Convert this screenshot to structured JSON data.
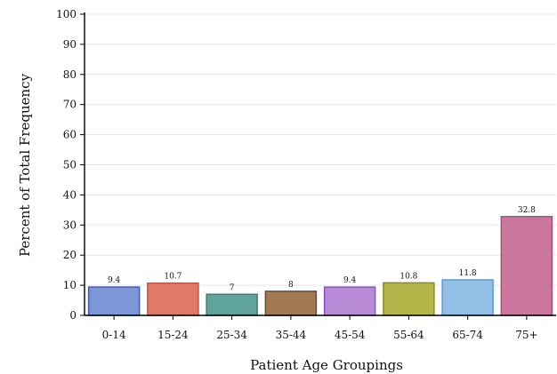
{
  "chart_data": {
    "type": "bar",
    "title": "",
    "xlabel": "Patient Age Groupings",
    "ylabel": "Percent of Total Frequency",
    "categories": [
      "0-14",
      "15-24",
      "25-34",
      "35-44",
      "45-54",
      "55-64",
      "65-74",
      "75+"
    ],
    "values": [
      9.4,
      10.7,
      7,
      8,
      9.4,
      10.8,
      11.8,
      32.8
    ],
    "data_labels": [
      "9.4",
      "10.7",
      "7",
      "8",
      "9.4",
      "10.8",
      "11.8",
      "32.8"
    ],
    "bar_colors": [
      "#7b97d6",
      "#e07b6a",
      "#5fa39a",
      "#a27a52",
      "#b98bd6",
      "#b3b749",
      "#92bfe6",
      "#cc789e"
    ],
    "bar_border_colors": [
      "#3f56c8",
      "#c8523f",
      "#3c7e76",
      "#6b4c2c",
      "#8f4fc4",
      "#8a8d25",
      "#5a9bd8",
      "#a94f78"
    ],
    "ylim": [
      0,
      100
    ],
    "yticks": [
      0,
      10,
      20,
      30,
      40,
      50,
      60,
      70,
      80,
      90,
      100
    ],
    "grid": true,
    "legend": "none"
  }
}
